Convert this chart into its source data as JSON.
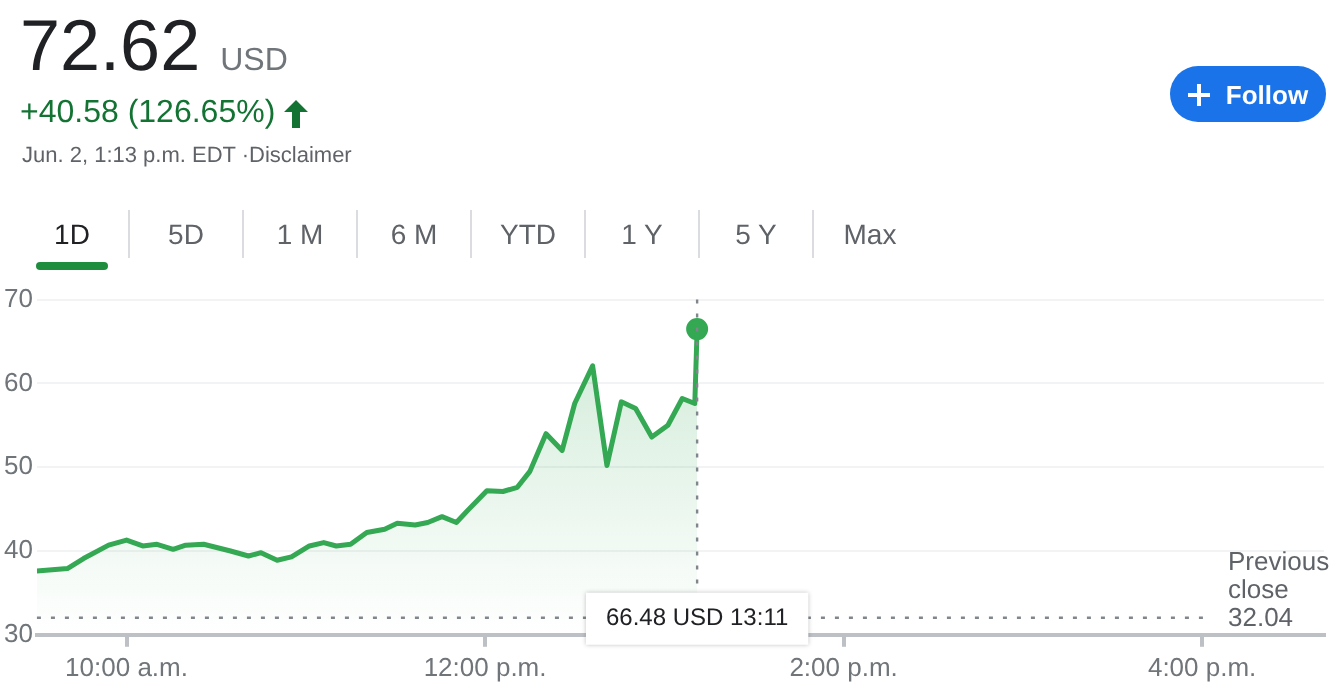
{
  "chart_data": {
    "type": "area",
    "title": "72.62",
    "subtitle": "+40.58 (126.65%)",
    "annotations": [
      "USD",
      "Jun. 2, 1:13 p.m. EDT ·Disclaimer",
      "Follow",
      "1D",
      "5D",
      "1 M",
      "6 M",
      "YTD",
      "1 Y",
      "5 Y",
      "Max",
      "66.48 USD 13:11"
    ],
    "series": [
      {
        "color": "#34a853",
        "x": [
          9.5,
          9.67,
          9.76,
          9.9,
          10.0,
          10.09,
          10.17,
          10.26,
          10.33,
          10.43,
          10.58,
          10.68,
          10.75,
          10.84,
          10.92,
          11.02,
          11.1,
          11.17,
          11.25,
          11.34,
          11.44,
          11.51,
          11.61,
          11.68,
          11.76,
          11.84,
          11.91,
          12.01,
          12.1,
          12.18,
          12.25,
          12.34,
          12.43,
          12.5,
          12.6,
          12.68,
          12.76,
          12.84,
          12.93,
          13.02,
          13.1,
          13.17,
          13.183
        ],
        "values": [
          37.6,
          37.9,
          39.1,
          40.7,
          41.3,
          40.6,
          40.8,
          40.2,
          40.7,
          40.8,
          40.0,
          39.4,
          39.8,
          38.9,
          39.3,
          40.6,
          41.0,
          40.6,
          40.8,
          42.2,
          42.6,
          43.3,
          43.1,
          43.4,
          44.1,
          43.4,
          45.0,
          47.2,
          47.1,
          47.6,
          49.5,
          54.0,
          52.0,
          57.6,
          62.1,
          50.2,
          57.8,
          57.0,
          53.6,
          55.0,
          58.2,
          57.6,
          66.48
        ]
      },
      {
        "type": "scatter",
        "color": "#34a853",
        "marker": "circle",
        "x": [
          13.183
        ],
        "values": [
          66.48
        ]
      }
    ],
    "xlim": [
      9.5,
      16.68
    ],
    "ylim": [
      30,
      70
    ],
    "xticks": [
      {
        "value": 10,
        "label": "10:00 a.m."
      },
      {
        "value": 12,
        "label": "12:00 p.m."
      },
      {
        "value": 14,
        "label": "2:00 p.m."
      },
      {
        "value": 16,
        "label": "4:00 p.m."
      }
    ],
    "yticks": [
      30,
      40,
      50,
      60,
      70
    ],
    "ref_lines": [
      {
        "axis": "y",
        "value": 32.04,
        "label": "Previous close 32.04",
        "line_style": "dotted",
        "color": "#80868b"
      },
      {
        "axis": "x",
        "value": 13.183,
        "line_style": "dotted",
        "color": "#80868b"
      }
    ],
    "grid": "y",
    "legend": false,
    "marker": "none",
    "line_style": "solid"
  }
}
